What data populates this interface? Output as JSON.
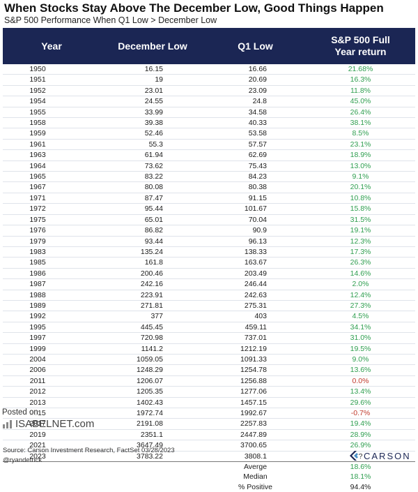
{
  "header": {
    "title": "When Stocks Stay Above The December Low, Good Things Happen",
    "subtitle": "S&P 500 Performance When Q1 Low > December Low"
  },
  "chart_data": {
    "type": "table",
    "columns": [
      "Year",
      "December Low",
      "Q1 Low",
      "S&P 500 Full Year return"
    ],
    "rows": [
      {
        "year": "1950",
        "dec": "16.15",
        "q1": "16.66",
        "ret": "21.68%",
        "sign": "pos"
      },
      {
        "year": "1951",
        "dec": "19",
        "q1": "20.69",
        "ret": "16.3%",
        "sign": "pos"
      },
      {
        "year": "1952",
        "dec": "23.01",
        "q1": "23.09",
        "ret": "11.8%",
        "sign": "pos"
      },
      {
        "year": "1954",
        "dec": "24.55",
        "q1": "24.8",
        "ret": "45.0%",
        "sign": "pos"
      },
      {
        "year": "1955",
        "dec": "33.99",
        "q1": "34.58",
        "ret": "26.4%",
        "sign": "pos"
      },
      {
        "year": "1958",
        "dec": "39.38",
        "q1": "40.33",
        "ret": "38.1%",
        "sign": "pos"
      },
      {
        "year": "1959",
        "dec": "52.46",
        "q1": "53.58",
        "ret": "8.5%",
        "sign": "pos"
      },
      {
        "year": "1961",
        "dec": "55.3",
        "q1": "57.57",
        "ret": "23.1%",
        "sign": "pos"
      },
      {
        "year": "1963",
        "dec": "61.94",
        "q1": "62.69",
        "ret": "18.9%",
        "sign": "pos"
      },
      {
        "year": "1964",
        "dec": "73.62",
        "q1": "75.43",
        "ret": "13.0%",
        "sign": "pos"
      },
      {
        "year": "1965",
        "dec": "83.22",
        "q1": "84.23",
        "ret": "9.1%",
        "sign": "pos"
      },
      {
        "year": "1967",
        "dec": "80.08",
        "q1": "80.38",
        "ret": "20.1%",
        "sign": "pos"
      },
      {
        "year": "1971",
        "dec": "87.47",
        "q1": "91.15",
        "ret": "10.8%",
        "sign": "pos"
      },
      {
        "year": "1972",
        "dec": "95.44",
        "q1": "101.67",
        "ret": "15.8%",
        "sign": "pos"
      },
      {
        "year": "1975",
        "dec": "65.01",
        "q1": "70.04",
        "ret": "31.5%",
        "sign": "pos"
      },
      {
        "year": "1976",
        "dec": "86.82",
        "q1": "90.9",
        "ret": "19.1%",
        "sign": "pos"
      },
      {
        "year": "1979",
        "dec": "93.44",
        "q1": "96.13",
        "ret": "12.3%",
        "sign": "pos"
      },
      {
        "year": "1983",
        "dec": "135.24",
        "q1": "138.33",
        "ret": "17.3%",
        "sign": "pos"
      },
      {
        "year": "1985",
        "dec": "161.8",
        "q1": "163.67",
        "ret": "26.3%",
        "sign": "pos"
      },
      {
        "year": "1986",
        "dec": "200.46",
        "q1": "203.49",
        "ret": "14.6%",
        "sign": "pos"
      },
      {
        "year": "1987",
        "dec": "242.16",
        "q1": "246.44",
        "ret": "2.0%",
        "sign": "pos"
      },
      {
        "year": "1988",
        "dec": "223.91",
        "q1": "242.63",
        "ret": "12.4%",
        "sign": "pos"
      },
      {
        "year": "1989",
        "dec": "271.81",
        "q1": "275.31",
        "ret": "27.3%",
        "sign": "pos"
      },
      {
        "year": "1992",
        "dec": "377",
        "q1": "403",
        "ret": "4.5%",
        "sign": "pos"
      },
      {
        "year": "1995",
        "dec": "445.45",
        "q1": "459.11",
        "ret": "34.1%",
        "sign": "pos"
      },
      {
        "year": "1997",
        "dec": "720.98",
        "q1": "737.01",
        "ret": "31.0%",
        "sign": "pos"
      },
      {
        "year": "1999",
        "dec": "1141.2",
        "q1": "1212.19",
        "ret": "19.5%",
        "sign": "pos"
      },
      {
        "year": "2004",
        "dec": "1059.05",
        "q1": "1091.33",
        "ret": "9.0%",
        "sign": "pos"
      },
      {
        "year": "2006",
        "dec": "1248.29",
        "q1": "1254.78",
        "ret": "13.6%",
        "sign": "pos"
      },
      {
        "year": "2011",
        "dec": "1206.07",
        "q1": "1256.88",
        "ret": "0.0%",
        "sign": "neg"
      },
      {
        "year": "2012",
        "dec": "1205.35",
        "q1": "1277.06",
        "ret": "13.4%",
        "sign": "pos"
      },
      {
        "year": "2013",
        "dec": "1402.43",
        "q1": "1457.15",
        "ret": "29.6%",
        "sign": "pos"
      },
      {
        "year": "2015",
        "dec": "1972.74",
        "q1": "1992.67",
        "ret": "-0.7%",
        "sign": "neg"
      },
      {
        "year": "2017",
        "dec": "2191.08",
        "q1": "2257.83",
        "ret": "19.4%",
        "sign": "pos"
      },
      {
        "year": "2019",
        "dec": "2351.1",
        "q1": "2447.89",
        "ret": "28.9%",
        "sign": "pos"
      },
      {
        "year": "2021",
        "dec": "3647.49",
        "q1": "3700.65",
        "ret": "26.9%",
        "sign": "pos"
      },
      {
        "year": "2023",
        "dec": "3783.22",
        "q1": "3808.1",
        "ret": "?",
        "sign": "na"
      }
    ],
    "summary": [
      {
        "label": "Averge",
        "value": "18.6%"
      },
      {
        "label": "Median",
        "value": "18.1%"
      },
      {
        "label": "% Positive",
        "value": "94.4%"
      }
    ]
  },
  "colors": {
    "header_bg": "#1b2654",
    "positive": "#2e9e4f",
    "negative": "#c0392b"
  },
  "watermark": {
    "posted_on": "Posted on",
    "brand": "ISABELNET.com"
  },
  "footer": {
    "source": "Source: Carson Investment Research, FactSet 03/28/2023",
    "handle": "@ryandetrick",
    "logo": "CARSON"
  }
}
